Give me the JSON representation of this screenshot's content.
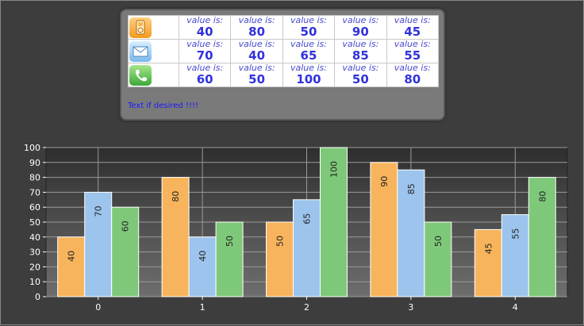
{
  "legend": {
    "cell_label": "value is:",
    "rows": [
      {
        "icon": "ipod-icon",
        "color": "#f8b45c",
        "values": [
          "40",
          "80",
          "50",
          "90",
          "45"
        ]
      },
      {
        "icon": "mail-icon",
        "color": "#9cc4ec",
        "values": [
          "70",
          "40",
          "65",
          "85",
          "55"
        ]
      },
      {
        "icon": "phone-icon",
        "color": "#7ec87a",
        "values": [
          "60",
          "50",
          "100",
          "50",
          "80"
        ]
      }
    ],
    "caption": "Text if desired !!!!"
  },
  "chart_data": {
    "type": "bar",
    "categories": [
      "0",
      "1",
      "2",
      "3",
      "4"
    ],
    "series": [
      {
        "values": [
          40,
          80,
          50,
          90,
          45
        ],
        "color": "#f8b45c"
      },
      {
        "values": [
          70,
          40,
          65,
          85,
          55
        ],
        "color": "#9cc4ec"
      },
      {
        "values": [
          60,
          50,
          100,
          50,
          80
        ],
        "color": "#7ec87a"
      }
    ],
    "ylim": [
      0,
      100
    ],
    "yticks": [
      0,
      10,
      20,
      30,
      40,
      50,
      60,
      70,
      80,
      90,
      100
    ],
    "grid": true,
    "data_labels": "vertical, inside bars",
    "background": "dark gradient"
  }
}
